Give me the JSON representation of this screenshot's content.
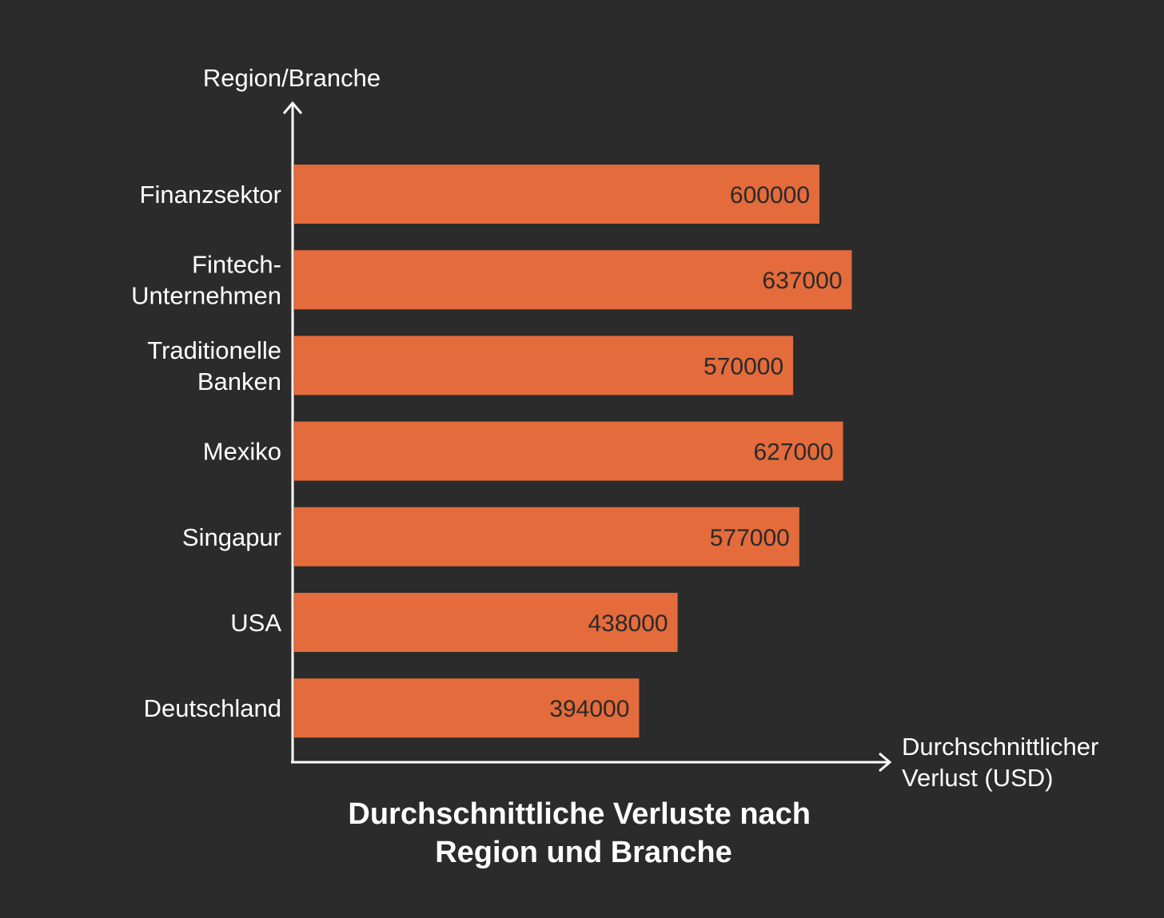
{
  "chart_data": {
    "type": "bar",
    "orientation": "horizontal",
    "title_lines": [
      "Durchschnittliche Verluste nach",
      "Region und Branche"
    ],
    "ylabel": "Region/Branche",
    "xlabel_lines": [
      "Durchschnittlicher",
      "Verlust (USD)"
    ],
    "categories": [
      [
        "Finanzsektor"
      ],
      [
        "Fintech-",
        "Unternehmen"
      ],
      [
        "Traditionelle",
        "Banken"
      ],
      [
        "Mexiko"
      ],
      [
        "Singapur"
      ],
      [
        "USA"
      ],
      [
        "Deutschland"
      ]
    ],
    "values": [
      600000,
      637000,
      570000,
      627000,
      577000,
      438000,
      394000
    ],
    "xlim": [
      0,
      700000
    ],
    "grid": false,
    "legend": "none",
    "colors": {
      "bar": "#e46b3b",
      "background": "#2b2b2b",
      "axis": "#ffffff",
      "text": "#ffffff",
      "value_text": "#2a2a2a"
    }
  }
}
